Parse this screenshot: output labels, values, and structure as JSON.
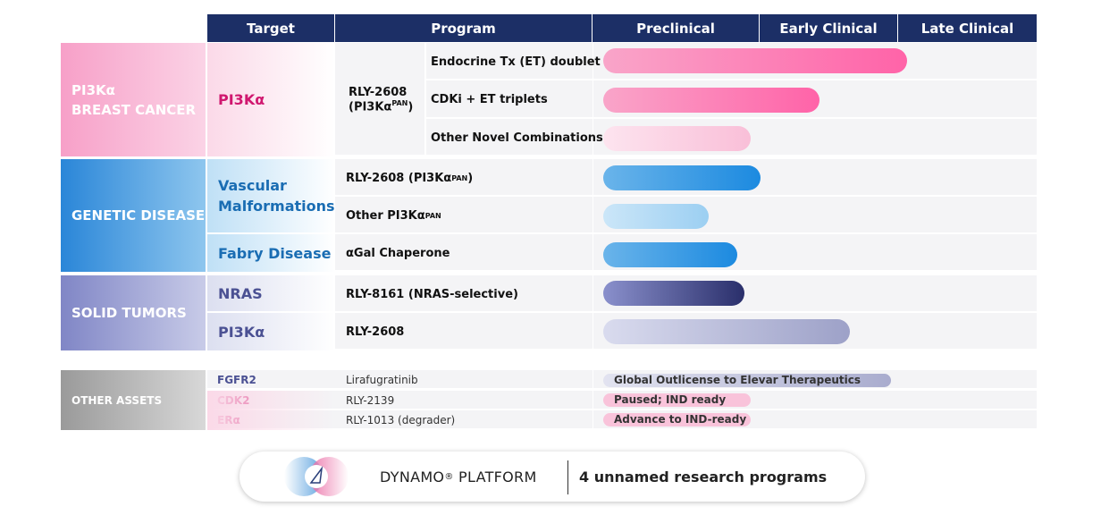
{
  "header": {
    "target": "Target",
    "program": "Program",
    "stages": [
      "Preclinical",
      "Early Clinical",
      "Late Clinical"
    ]
  },
  "groups": [
    {
      "name_lines": [
        "PI3Kα",
        "BREAST CANCER"
      ],
      "targets": [
        "PI3Kα"
      ],
      "program": {
        "text": "RLY-2608",
        "line2": "(PI3Kα",
        "sup": "PAN",
        "tail": ")"
      },
      "rows": [
        "Endocrine Tx (ET) doublet",
        "CDKi + ET triplets",
        "Other Novel Combinations"
      ]
    },
    {
      "name": "GENETIC DISEASE",
      "targets": [
        "Vascular Malformations",
        "Fabry Disease"
      ],
      "rows": [
        {
          "text": "RLY-2608 (PI3Kα",
          "sup": "PAN",
          "tail": ")"
        },
        {
          "text": "Other PI3Kα",
          "sup": "PAN"
        },
        {
          "text": "αGal Chaperone"
        }
      ]
    },
    {
      "name": "SOLID TUMORS",
      "targets": [
        "NRAS",
        "PI3Kα"
      ],
      "rows": [
        "RLY-8161 (NRAS-selective)",
        "RLY-2608"
      ]
    }
  ],
  "other_assets": {
    "label": "OTHER ASSETS",
    "rows": [
      {
        "target": "FGFR2",
        "program": "Lirafugratinib",
        "status": "Global Outlicense to Elevar Therapeutics"
      },
      {
        "target": "CDK2",
        "program": "RLY-2139",
        "status": "Paused; IND ready"
      },
      {
        "target": "ERα",
        "program": "RLY-1013 (degrader)",
        "status": "Advance to IND-ready"
      }
    ]
  },
  "platform": {
    "name": "DYNAMO",
    "mark": "®",
    "suffix": " PLATFORM",
    "programs": "4 unnamed research programs"
  }
}
